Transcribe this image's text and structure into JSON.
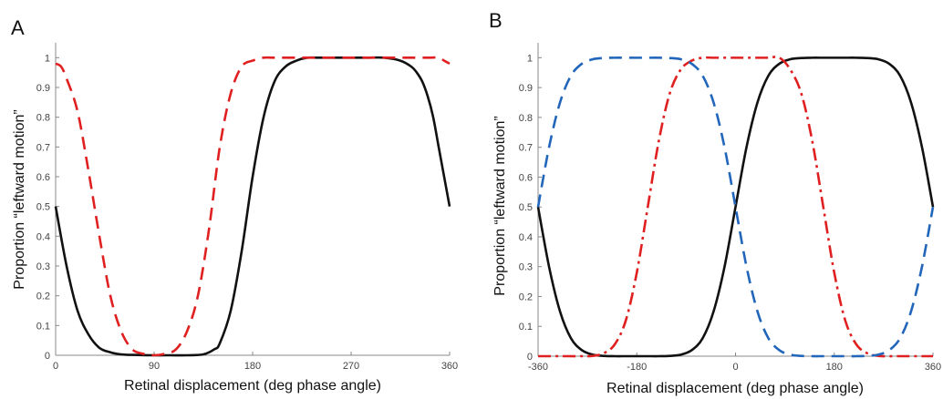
{
  "chart_data": [
    {
      "type": "line",
      "panel": "A",
      "xlabel": "Retinal displacement (deg phase angle)",
      "ylabel": "Proportion “leftward motion”",
      "xlim": [
        0,
        360
      ],
      "ylim": [
        0,
        1.05
      ],
      "xticks": [
        0,
        90,
        180,
        270,
        360
      ],
      "yticks": [
        0,
        0.1,
        0.2,
        0.3,
        0.4,
        0.5,
        0.6,
        0.7,
        0.8,
        0.9,
        1
      ],
      "ytick_labels": [
        "0",
        "0.1",
        "0.2",
        "0.3",
        "0.4",
        "0.5",
        "0.6",
        "0.7",
        "0.8",
        "0.9",
        "1"
      ],
      "series": [
        {
          "color": "#111111",
          "style": "solid",
          "x": [
            0,
            10,
            20,
            30,
            40,
            50,
            60,
            75,
            90,
            105,
            120,
            135,
            145,
            150,
            160,
            170,
            180,
            190,
            200,
            210,
            220,
            230,
            240,
            255,
            270,
            285,
            300,
            315,
            325,
            330,
            335,
            340,
            345,
            350,
            355,
            360
          ],
          "y": [
            0.5,
            0.3,
            0.15,
            0.07,
            0.025,
            0.01,
            0.003,
            0.001,
            0.0,
            0.0,
            0.0,
            0.003,
            0.02,
            0.04,
            0.15,
            0.35,
            0.6,
            0.8,
            0.92,
            0.97,
            0.99,
            1.0,
            1.0,
            1.0,
            1.0,
            1.0,
            1.0,
            0.99,
            0.97,
            0.95,
            0.92,
            0.87,
            0.8,
            0.7,
            0.6,
            0.5
          ]
        },
        {
          "color": "#e02020",
          "style": "dashed",
          "x": [
            0,
            5,
            10,
            20,
            30,
            40,
            50,
            60,
            70,
            80,
            90,
            100,
            110,
            120,
            130,
            140,
            150,
            160,
            170,
            180,
            190,
            200,
            220,
            240,
            260,
            280,
            300,
            320,
            340,
            350,
            355,
            360
          ],
          "y": [
            0.98,
            0.97,
            0.93,
            0.82,
            0.62,
            0.4,
            0.2,
            0.08,
            0.02,
            0.005,
            0.0,
            0.005,
            0.02,
            0.08,
            0.2,
            0.42,
            0.7,
            0.88,
            0.97,
            0.99,
            1.0,
            1.0,
            1.0,
            1.0,
            1.0,
            1.0,
            1.0,
            1.0,
            1.0,
            1.0,
            0.99,
            0.98
          ]
        }
      ]
    },
    {
      "type": "line",
      "panel": "B",
      "xlabel": "Retinal displacement (deg phase angle)",
      "ylabel": "Proportion “leftward motion”",
      "xlim": [
        -360,
        360
      ],
      "ylim": [
        0,
        1.05
      ],
      "xticks": [
        -360,
        -180,
        0,
        180,
        360
      ],
      "yticks": [
        0,
        0.1,
        0.2,
        0.3,
        0.4,
        0.5,
        0.6,
        0.7,
        0.8,
        0.9,
        1
      ],
      "ytick_labels": [
        "0",
        "0.1",
        "0.2",
        "0.3",
        "0.4",
        "0.5",
        "0.6",
        "0.7",
        "0.8",
        "0.9",
        "1"
      ],
      "series": [
        {
          "color": "#111111",
          "style": "solid",
          "x": [
            -360,
            -340,
            -320,
            -300,
            -280,
            -260,
            -240,
            -220,
            -200,
            -180,
            -160,
            -140,
            -120,
            -100,
            -80,
            -60,
            -40,
            -20,
            0,
            20,
            40,
            60,
            80,
            100,
            120,
            140,
            160,
            180,
            200,
            220,
            240,
            260,
            280,
            300,
            320,
            340,
            360
          ],
          "y": [
            0.5,
            0.3,
            0.15,
            0.06,
            0.02,
            0.005,
            0.001,
            0.0,
            0.0,
            0.0,
            0.0,
            0.0,
            0.001,
            0.005,
            0.02,
            0.06,
            0.15,
            0.3,
            0.5,
            0.7,
            0.85,
            0.94,
            0.98,
            0.995,
            0.999,
            1.0,
            1.0,
            1.0,
            1.0,
            1.0,
            0.999,
            0.995,
            0.98,
            0.94,
            0.85,
            0.7,
            0.5
          ]
        },
        {
          "color": "#e02020",
          "style": "dashdot",
          "x": [
            -360,
            -320,
            -280,
            -260,
            -240,
            -220,
            -200,
            -180,
            -160,
            -140,
            -120,
            -100,
            -80,
            -60,
            -40,
            -20,
            0,
            20,
            40,
            60,
            80,
            100,
            120,
            140,
            160,
            180,
            200,
            220,
            240,
            260,
            280,
            300,
            320,
            360
          ],
          "y": [
            0.0,
            0.0,
            0.0,
            0.001,
            0.01,
            0.04,
            0.12,
            0.28,
            0.5,
            0.72,
            0.88,
            0.96,
            0.99,
            1.0,
            1.0,
            1.0,
            1.0,
            1.0,
            1.0,
            1.0,
            1.0,
            0.96,
            0.88,
            0.72,
            0.5,
            0.28,
            0.12,
            0.04,
            0.01,
            0.001,
            0.0,
            0.0,
            0.0,
            0.0
          ]
        },
        {
          "color": "#2266bb",
          "style": "dashed",
          "x": [
            -360,
            -340,
            -320,
            -300,
            -280,
            -260,
            -240,
            -220,
            -200,
            -180,
            -160,
            -140,
            -120,
            -100,
            -80,
            -60,
            -40,
            -20,
            0,
            20,
            40,
            60,
            80,
            100,
            120,
            140,
            160,
            180,
            200,
            220,
            240,
            260,
            280,
            300,
            320,
            340,
            360
          ],
          "y": [
            0.5,
            0.7,
            0.85,
            0.94,
            0.98,
            0.995,
            0.999,
            1.0,
            1.0,
            1.0,
            1.0,
            1.0,
            0.999,
            0.995,
            0.98,
            0.94,
            0.85,
            0.7,
            0.5,
            0.3,
            0.15,
            0.06,
            0.02,
            0.005,
            0.001,
            0.0,
            0.0,
            0.0,
            0.0,
            0.0,
            0.001,
            0.005,
            0.02,
            0.06,
            0.15,
            0.3,
            0.5
          ]
        }
      ]
    }
  ]
}
